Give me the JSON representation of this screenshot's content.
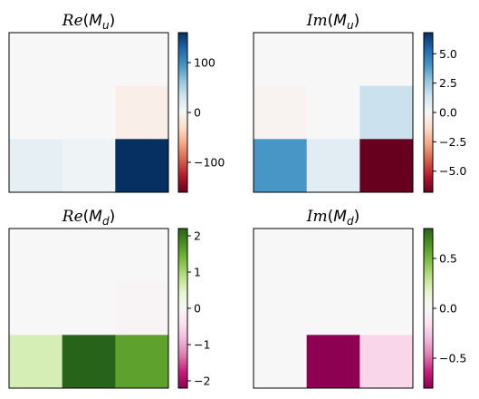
{
  "chart_data": [
    {
      "type": "heatmap",
      "title_base": "Re",
      "title_sub": "u",
      "rows": 3,
      "cols": 3,
      "values": [
        [
          0,
          0,
          0
        ],
        [
          0,
          0,
          -10
        ],
        [
          15,
          8,
          160
        ]
      ],
      "clim": [
        -160,
        160
      ],
      "colormap": "RdBu",
      "colorbar_ticks": [
        100,
        0,
        -100
      ],
      "colorbar_labels": [
        "100",
        "0",
        "−100"
      ]
    },
    {
      "type": "heatmap",
      "title_base": "Im",
      "title_sub": "u",
      "rows": 3,
      "cols": 3,
      "values": [
        [
          0,
          0,
          0
        ],
        [
          -0.2,
          0,
          1.5
        ],
        [
          4.0,
          0.8,
          -6.8
        ]
      ],
      "clim": [
        -6.8,
        6.8
      ],
      "colormap": "RdBu",
      "colorbar_ticks": [
        5.0,
        2.5,
        0.0,
        -2.5,
        -5.0
      ],
      "colorbar_labels": [
        "5.0",
        "2.5",
        "0.0",
        "−2.5",
        "−5.0"
      ]
    },
    {
      "type": "heatmap",
      "title_base": "Re",
      "title_sub": "d",
      "rows": 3,
      "cols": 3,
      "values": [
        [
          0,
          0,
          0
        ],
        [
          0,
          0,
          -0.05
        ],
        [
          0.6,
          2.2,
          1.6
        ]
      ],
      "clim": [
        -2.2,
        2.2
      ],
      "colormap": "PiYG",
      "colorbar_ticks": [
        2,
        1,
        0,
        -1,
        -2
      ],
      "colorbar_labels": [
        "2",
        "1",
        "0",
        "−1",
        "−2"
      ]
    },
    {
      "type": "heatmap",
      "title_base": "Im",
      "title_sub": "d",
      "rows": 3,
      "cols": 3,
      "values": [
        [
          0,
          0,
          0
        ],
        [
          0,
          0,
          0
        ],
        [
          0,
          -0.8,
          -0.2
        ]
      ],
      "clim": [
        -0.8,
        0.8
      ],
      "colormap": "PiYG",
      "colorbar_ticks": [
        0.5,
        0.0,
        -0.5
      ],
      "colorbar_labels": [
        "0.5",
        "0.0",
        "−0.5"
      ]
    }
  ]
}
